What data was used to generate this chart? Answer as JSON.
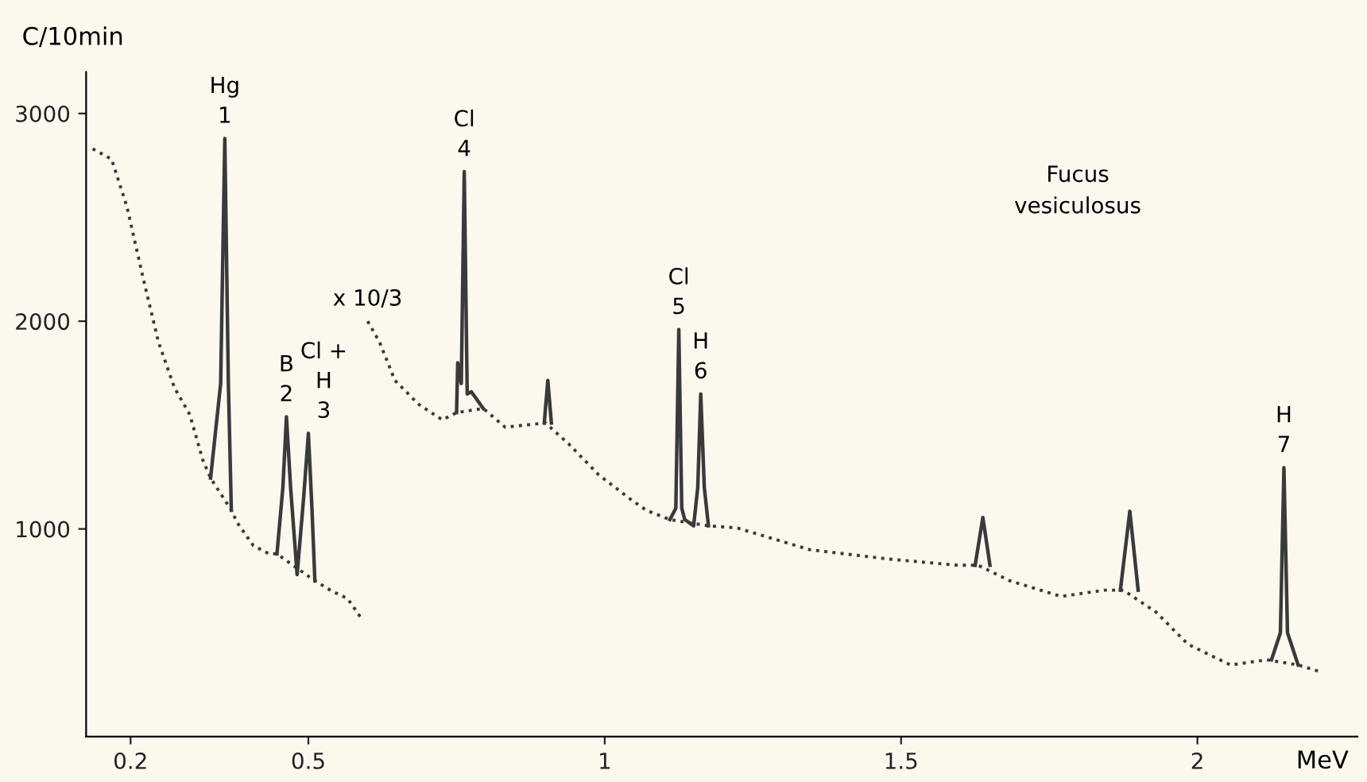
{
  "chart_data": {
    "type": "line",
    "xlabel": "MeV",
    "ylabel": "C/10min",
    "xlim": [
      0.125,
      2.27
    ],
    "ylim": [
      0,
      3200
    ],
    "xticks": [
      0.2,
      0.5,
      1,
      1.5,
      2
    ],
    "yticks": [
      1000,
      2000,
      3000
    ],
    "grid": false,
    "legend": false,
    "marker": "none",
    "series": [
      {
        "color": "#3a3a3a",
        "line_style": "dotted",
        "x": [
          0.136,
          0.168,
          0.194,
          0.221,
          0.247,
          0.274,
          0.3,
          0.322,
          0.335,
          0.37,
          0.38,
          0.407,
          0.434,
          0.447,
          0.511,
          0.54,
          0.566,
          0.588
        ],
        "values": [
          2830,
          2780,
          2550,
          2210,
          1900,
          1680,
          1550,
          1330,
          1245,
          1090,
          1030,
          920,
          880,
          880,
          750,
          700,
          665,
          575
        ]
      },
      {
        "color": "#3a3a3a",
        "line_style": "dotted",
        "x": [
          0.6,
          0.62,
          0.646,
          0.686,
          0.726,
          0.75,
          0.795,
          0.832,
          0.9,
          0.939,
          0.99,
          1.045,
          1.07,
          1.11,
          1.175,
          1.223,
          1.346,
          1.479,
          1.596,
          1.63,
          1.684,
          1.77,
          1.843,
          1.875,
          1.93,
          1.984,
          2.056,
          2.117,
          2.17,
          2.21
        ],
        "values": [
          2000,
          1900,
          1715,
          1600,
          1525,
          1560,
          1580,
          1490,
          1510,
          1410,
          1260,
          1140,
          1090,
          1045,
          1015,
          1005,
          900,
          855,
          825,
          825,
          750,
          675,
          705,
          705,
          600,
          445,
          345,
          370,
          345,
          310
        ]
      },
      {
        "color": "#3a3a3a",
        "line_style": "solid",
        "x": [
          0.335,
          0.352,
          0.359,
          0.365,
          0.37,
          null,
          0.447,
          0.457,
          0.463,
          0.47,
          0.481,
          0.492,
          0.5,
          0.506,
          0.511,
          null,
          0.75,
          0.752,
          0.758,
          0.763,
          0.768,
          0.775,
          0.795,
          null,
          0.898,
          0.904,
          0.91,
          null,
          1.11,
          1.12,
          1.125,
          1.13,
          1.135,
          1.15,
          1.157,
          1.162,
          1.168,
          1.175,
          null,
          1.625,
          1.638,
          1.65,
          null,
          1.87,
          1.886,
          1.9,
          null,
          2.125,
          2.14,
          2.146,
          2.152,
          2.17
        ],
        "values": [
          1245,
          1700,
          2880,
          1700,
          1090,
          null,
          880,
          1200,
          1540,
          1200,
          780,
          1150,
          1460,
          1100,
          750,
          null,
          1560,
          1800,
          1700,
          2720,
          1650,
          1660,
          1580,
          null,
          1510,
          1715,
          1510,
          null,
          1045,
          1100,
          1960,
          1100,
          1045,
          1015,
          1200,
          1650,
          1200,
          1015,
          null,
          825,
          1055,
          825,
          null,
          705,
          1085,
          705,
          null,
          370,
          500,
          1295,
          500,
          345
        ]
      }
    ],
    "annotations": [
      {
        "text": "Hg\n1",
        "x": 0.359,
        "y": 2880
      },
      {
        "text": "B\n2",
        "x": 0.463,
        "y": 1540
      },
      {
        "text": "Cl +\nH\n3",
        "x": 0.5,
        "y": 1460
      },
      {
        "text": "Cl\n4",
        "x": 0.763,
        "y": 2720
      },
      {
        "text": "Cl\n5",
        "x": 1.125,
        "y": 1960
      },
      {
        "text": "H\n6",
        "x": 1.162,
        "y": 1650
      },
      {
        "text": "H\n7",
        "x": 2.146,
        "y": 1295
      },
      {
        "text": "x 10/3",
        "x": 0.6,
        "y": 2000
      },
      "Fucus\nvesiculosus"
    ]
  }
}
